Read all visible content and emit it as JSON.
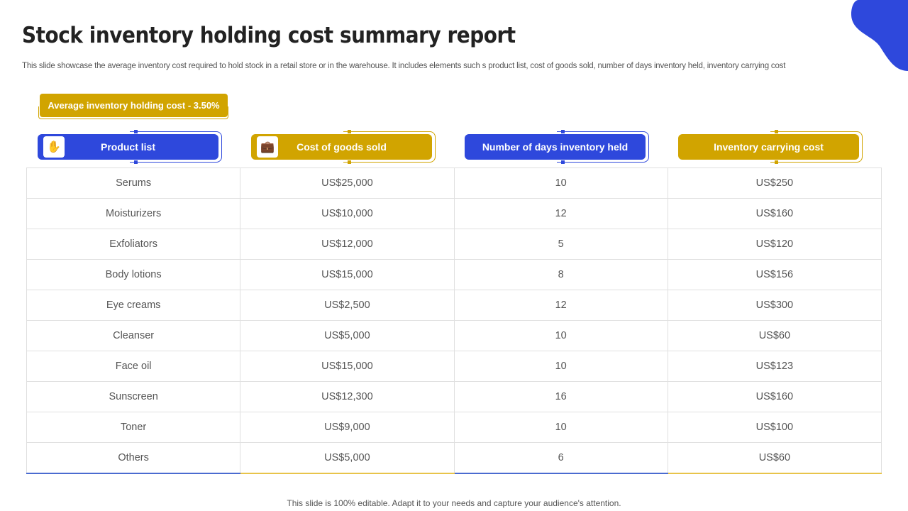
{
  "title": "Stock inventory holding cost summary report",
  "subtitle": "This slide showcase the average inventory cost required to hold stock in a retail store or in the warehouse. It includes elements such s product list, cost of goods sold, number of days inventory held, inventory carrying cost",
  "badge": "Average inventory holding cost - 3.50%",
  "columns": [
    {
      "label": "Product list",
      "icon": "hand-box-icon",
      "color": "#2e48dc"
    },
    {
      "label": "Cost of goods sold",
      "icon": "briefcase-icon",
      "color": "#d1a400"
    },
    {
      "label": "Number of days inventory held",
      "color": "#2e48dc"
    },
    {
      "label": "Inventory carrying cost",
      "color": "#d1a400"
    }
  ],
  "rows": [
    [
      "Serums",
      "US$25,000",
      "10",
      "US$250"
    ],
    [
      "Moisturizers",
      "US$10,000",
      "12",
      "US$160"
    ],
    [
      "Exfoliators",
      "US$12,000",
      "5",
      "US$120"
    ],
    [
      "Body lotions",
      "US$15,000",
      "8",
      "US$156"
    ],
    [
      "Eye creams",
      "US$2,500",
      "12",
      "US$300"
    ],
    [
      "Cleanser",
      "US$5,000",
      "10",
      "US$60"
    ],
    [
      "Face oil",
      "US$15,000",
      "10",
      "US$123"
    ],
    [
      "Sunscreen",
      "US$12,300",
      "16",
      "US$160"
    ],
    [
      "Toner",
      "US$9,000",
      "10",
      "US$100"
    ],
    [
      "Others",
      "US$5,000",
      "6",
      "US$60"
    ]
  ],
  "footer": "This slide is 100% editable. Adapt it to your needs and capture your audience's attention."
}
